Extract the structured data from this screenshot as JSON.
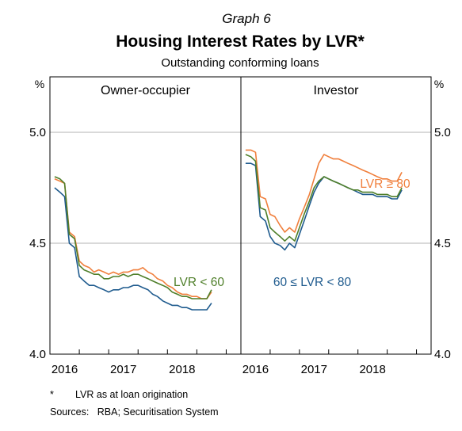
{
  "figure": {
    "kicker": "Graph 6",
    "title": "Housing Interest Rates by LVR*",
    "subtitle": "Outstanding conforming loans",
    "footnote_marker": "*",
    "footnote_text": "LVR as at loan origination",
    "sources": "Sources:   RBA; Securitisation System"
  },
  "chart_data": {
    "type": "line",
    "ylabel_left": "%",
    "ylabel_right": "%",
    "ylim": [
      4.0,
      5.25
    ],
    "yticks": [
      4.0,
      4.5,
      5.0
    ],
    "ytick_labels": [
      "4.0",
      "4.5",
      "5.0"
    ],
    "xlim": [
      2015.5,
      2018.75
    ],
    "xticks": [
      2015.5,
      2016.0,
      2016.5,
      2017.0,
      2017.5,
      2018.0,
      2018.5
    ],
    "xtick_labels": [
      {
        "text": "2016",
        "at": 2015.75
      },
      {
        "text": "2017",
        "at": 2016.75
      },
      {
        "text": "2018",
        "at": 2017.75
      }
    ],
    "grid": "horizontal",
    "colors": {
      "lvr_ge_80": "#f07f3c",
      "lvr_60_80": "#1f5b8e",
      "lvr_lt_60": "#4f7f2a",
      "grid": "#b3b3b3",
      "axis": "#000000"
    },
    "panels": [
      {
        "id": "owner-occupier",
        "title": "Owner-occupier",
        "labels": [
          {
            "text": "LVR < 60",
            "series": "lvr_lt_60"
          }
        ],
        "x": [
          2015.58,
          2015.67,
          2015.75,
          2015.83,
          2015.92,
          2016.0,
          2016.08,
          2016.17,
          2016.25,
          2016.33,
          2016.42,
          2016.5,
          2016.58,
          2016.67,
          2016.75,
          2016.83,
          2016.92,
          2017.0,
          2017.08,
          2017.17,
          2017.25,
          2017.33,
          2017.42,
          2017.5,
          2017.58,
          2017.67,
          2017.75,
          2017.83,
          2017.92,
          2018.0,
          2018.08,
          2018.17,
          2018.25
        ],
        "series": [
          {
            "key": "lvr_ge_80",
            "values": [
              4.79,
              4.78,
              4.77,
              4.55,
              4.53,
              4.42,
              4.4,
              4.39,
              4.37,
              4.38,
              4.37,
              4.36,
              4.37,
              4.36,
              4.37,
              4.37,
              4.38,
              4.38,
              4.39,
              4.37,
              4.36,
              4.34,
              4.33,
              4.31,
              4.3,
              4.28,
              4.27,
              4.27,
              4.26,
              4.26,
              4.25,
              4.25,
              4.28
            ]
          },
          {
            "key": "lvr_60_80",
            "values": [
              4.75,
              4.73,
              4.71,
              4.5,
              4.48,
              4.35,
              4.33,
              4.31,
              4.31,
              4.3,
              4.29,
              4.28,
              4.29,
              4.29,
              4.3,
              4.3,
              4.31,
              4.31,
              4.3,
              4.29,
              4.27,
              4.26,
              4.24,
              4.23,
              4.22,
              4.22,
              4.21,
              4.21,
              4.2,
              4.2,
              4.2,
              4.2,
              4.23
            ]
          },
          {
            "key": "lvr_lt_60",
            "values": [
              4.8,
              4.79,
              4.77,
              4.54,
              4.52,
              4.4,
              4.38,
              4.37,
              4.36,
              4.36,
              4.34,
              4.34,
              4.35,
              4.35,
              4.36,
              4.35,
              4.36,
              4.36,
              4.35,
              4.34,
              4.33,
              4.32,
              4.31,
              4.3,
              4.28,
              4.27,
              4.26,
              4.26,
              4.25,
              4.25,
              4.25,
              4.25,
              4.29
            ]
          }
        ]
      },
      {
        "id": "investor",
        "title": "Investor",
        "labels": [
          {
            "text": "LVR ≥ 80",
            "series": "lvr_ge_80"
          },
          {
            "text": "60 ≤ LVR < 80",
            "series": "lvr_60_80"
          }
        ],
        "x": [
          2015.58,
          2015.67,
          2015.75,
          2015.83,
          2015.92,
          2016.0,
          2016.08,
          2016.17,
          2016.25,
          2016.33,
          2016.42,
          2016.5,
          2016.58,
          2016.67,
          2016.75,
          2016.83,
          2016.92,
          2017.0,
          2017.08,
          2017.17,
          2017.25,
          2017.33,
          2017.42,
          2017.5,
          2017.58,
          2017.67,
          2017.75,
          2017.83,
          2017.92,
          2018.0,
          2018.08,
          2018.17,
          2018.25
        ],
        "series": [
          {
            "key": "lvr_ge_80",
            "values": [
              4.92,
              4.92,
              4.91,
              4.71,
              4.7,
              4.63,
              4.62,
              4.58,
              4.55,
              4.57,
              4.55,
              4.61,
              4.66,
              4.72,
              4.79,
              4.86,
              4.9,
              4.89,
              4.88,
              4.88,
              4.87,
              4.86,
              4.85,
              4.84,
              4.83,
              4.82,
              4.81,
              4.8,
              4.79,
              4.79,
              4.78,
              4.78,
              4.82
            ]
          },
          {
            "key": "lvr_60_80",
            "values": [
              4.86,
              4.86,
              4.85,
              4.62,
              4.6,
              4.53,
              4.5,
              4.49,
              4.47,
              4.5,
              4.48,
              4.54,
              4.6,
              4.67,
              4.73,
              4.77,
              4.8,
              4.79,
              4.78,
              4.77,
              4.76,
              4.75,
              4.74,
              4.73,
              4.72,
              4.72,
              4.72,
              4.71,
              4.71,
              4.71,
              4.7,
              4.7,
              4.74
            ]
          },
          {
            "key": "lvr_lt_60",
            "values": [
              4.9,
              4.89,
              4.87,
              4.66,
              4.65,
              4.57,
              4.55,
              4.53,
              4.51,
              4.53,
              4.51,
              4.57,
              4.63,
              4.69,
              4.75,
              4.78,
              4.8,
              4.79,
              4.78,
              4.77,
              4.76,
              4.75,
              4.74,
              4.74,
              4.73,
              4.73,
              4.73,
              4.72,
              4.72,
              4.72,
              4.71,
              4.71,
              4.75
            ]
          }
        ]
      }
    ]
  }
}
